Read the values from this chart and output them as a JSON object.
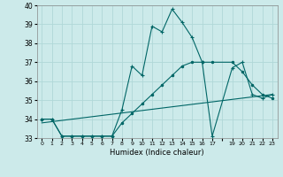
{
  "xlabel": "Humidex (Indice chaleur)",
  "background_color": "#cceaea",
  "grid_color": "#b0d8d8",
  "line_color": "#006666",
  "xlim": [
    -0.5,
    23.5
  ],
  "ylim": [
    33,
    40
  ],
  "yticks": [
    33,
    34,
    35,
    36,
    37,
    38,
    39,
    40
  ],
  "xtick_labels": [
    "0",
    "1",
    "2",
    "3",
    "4",
    "5",
    "6",
    "7",
    "8",
    "9",
    "10",
    "11",
    "12",
    "13",
    "14",
    "15",
    "16",
    "17",
    "",
    "19",
    "20",
    "21",
    "22",
    "23"
  ],
  "series1_x": [
    0,
    1,
    2,
    3,
    4,
    5,
    6,
    7,
    8,
    9,
    10,
    11,
    12,
    13,
    14,
    15,
    16,
    17,
    19,
    20,
    21,
    22,
    23
  ],
  "series1_y": [
    34.0,
    34.0,
    33.1,
    33.1,
    33.1,
    33.1,
    33.1,
    33.1,
    34.5,
    36.8,
    36.3,
    38.9,
    38.6,
    39.8,
    39.1,
    38.3,
    37.0,
    33.1,
    36.7,
    37.0,
    35.3,
    35.1,
    35.3
  ],
  "series2_x": [
    0,
    1,
    2,
    3,
    4,
    5,
    6,
    7,
    8,
    9,
    10,
    11,
    12,
    13,
    14,
    15,
    16,
    17,
    19,
    20,
    21,
    22,
    23
  ],
  "series2_y": [
    34.0,
    34.0,
    33.1,
    33.1,
    33.1,
    33.1,
    33.1,
    33.1,
    33.8,
    34.3,
    34.8,
    35.3,
    35.8,
    36.3,
    36.8,
    37.0,
    37.0,
    37.0,
    37.0,
    36.5,
    35.8,
    35.3,
    35.1
  ],
  "series3_x": [
    0,
    23
  ],
  "series3_y": [
    33.8,
    35.3
  ]
}
